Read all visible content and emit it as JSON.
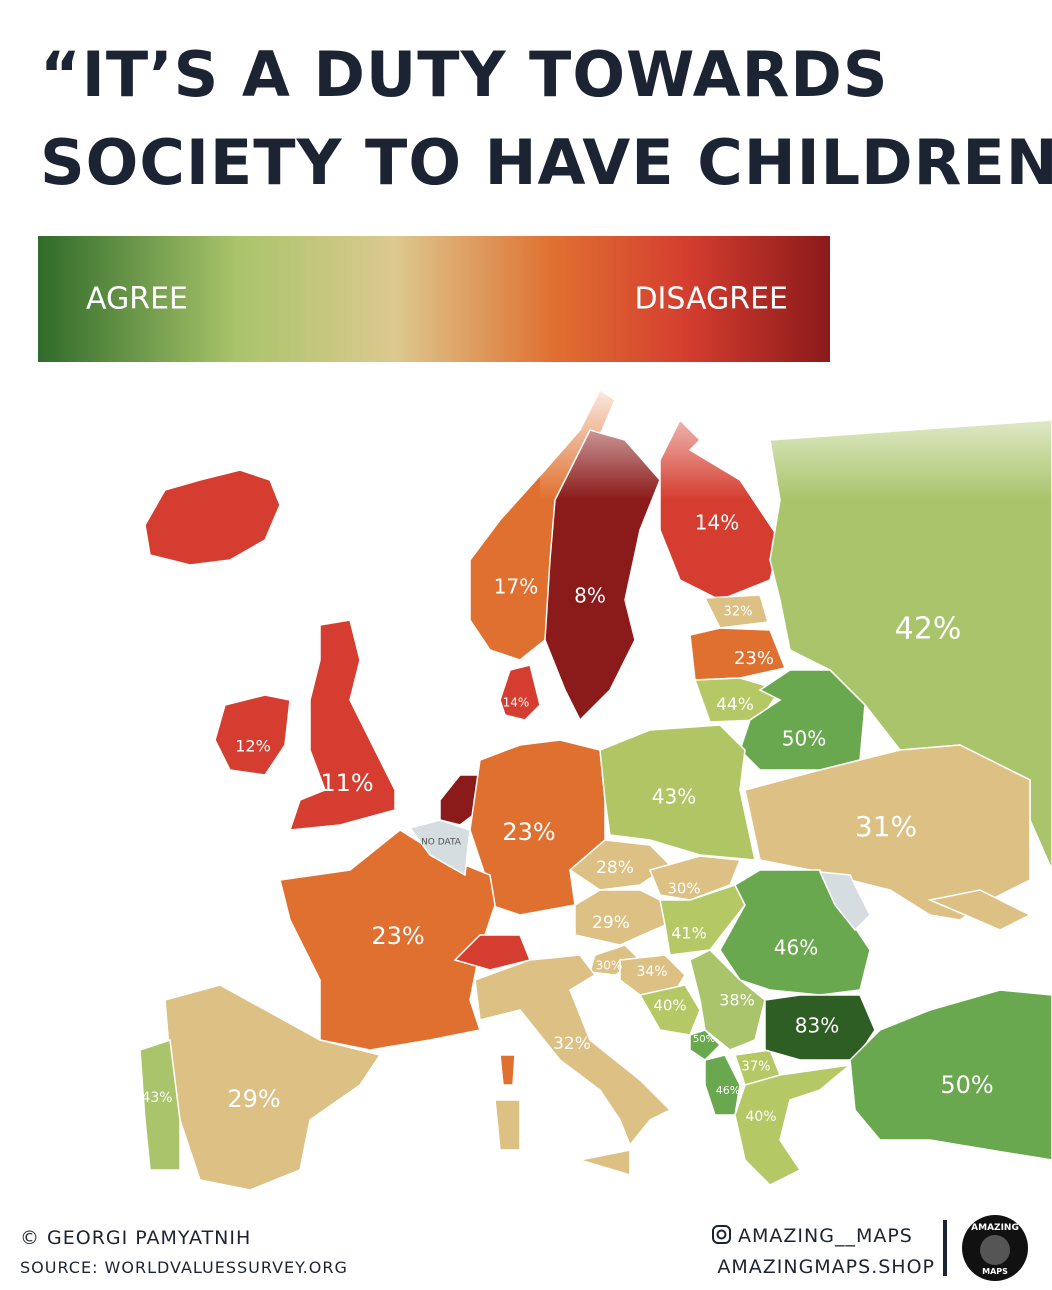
{
  "header": {
    "title_line1": "“IT’S A DUTY TOWARDS",
    "title_line2": "SOCIETY TO HAVE CHILDREN”"
  },
  "legend": {
    "left": "AGREE",
    "right": "DISAGREE"
  },
  "map": {
    "no_data": "NO DATA",
    "regions": [
      {
        "color": "#d43d2f"
      },
      {
        "color": "#e0702f",
        "label": "17%"
      },
      {
        "color": "#8b1a1a",
        "label": "8%"
      },
      {
        "color": "#d43d2f",
        "label": "14%"
      },
      {
        "color": "#a9c46a",
        "label": "42%"
      },
      {
        "color": "#dcc084",
        "label": "32%"
      },
      {
        "color": "#e0702f",
        "label": "23%"
      },
      {
        "color": "#b5c866",
        "label": "44%"
      },
      {
        "color": "#6aa84f",
        "label": "50%"
      },
      {
        "color": "#d43d2f",
        "label": "14%"
      },
      {
        "color": "#d43d2f",
        "label": "12%"
      },
      {
        "color": "#d43d2f",
        "label": "11%"
      },
      {
        "color": "#8b1a1a"
      },
      {
        "color": "#e0702f",
        "label": "23%"
      },
      {
        "color": "#b0c665",
        "label": "43%"
      },
      {
        "color": "#dcc084",
        "label": "31%"
      },
      {
        "color": "#dcc084",
        "label": "28%"
      },
      {
        "color": "#dcc084",
        "label": "30%"
      },
      {
        "color": "#dcc084",
        "label": "29%"
      },
      {
        "color": "#b5c866",
        "label": "41%"
      },
      {
        "color": "#6aa84f",
        "label": "46%"
      },
      {
        "color": "#dcc084",
        "label": "30%"
      },
      {
        "color": "#dcc084",
        "label": "34%"
      },
      {
        "color": "#b5c866",
        "label": "40%"
      },
      {
        "color": "#a9c46a",
        "label": "38%"
      },
      {
        "color": "#6aa84f",
        "label": "50%"
      },
      {
        "color": "#b5c866",
        "label": "37%"
      },
      {
        "color": "#6aa84f",
        "label": "46%"
      },
      {
        "color": "#2e5e24",
        "label": "83%"
      },
      {
        "color": "#b5c866",
        "label": "40%"
      },
      {
        "color": "#6aa84f",
        "label": "50%"
      },
      {
        "color": "#e0702f",
        "label": "23%"
      },
      {
        "color": "#d43d2f"
      },
      {
        "color": "#e0702f"
      },
      {
        "color": "#dcc084",
        "label": "32%"
      },
      {
        "color": "#dcc084",
        "label": "29%"
      },
      {
        "color": "#a9c46a",
        "label": "43%"
      },
      {
        "color": "#d6dde0"
      },
      {
        "color": "#dcc084"
      }
    ]
  },
  "footer": {
    "author": "© GEORGI PAMYATNIH",
    "source": "SOURCE: WORLDVALUESSURVEY.ORG",
    "instagram": "AMAZING__MAPS",
    "shop": "AMAZINGMAPS.SHOP",
    "logo_top": "AMAZING",
    "logo_bottom": "MAPS"
  }
}
